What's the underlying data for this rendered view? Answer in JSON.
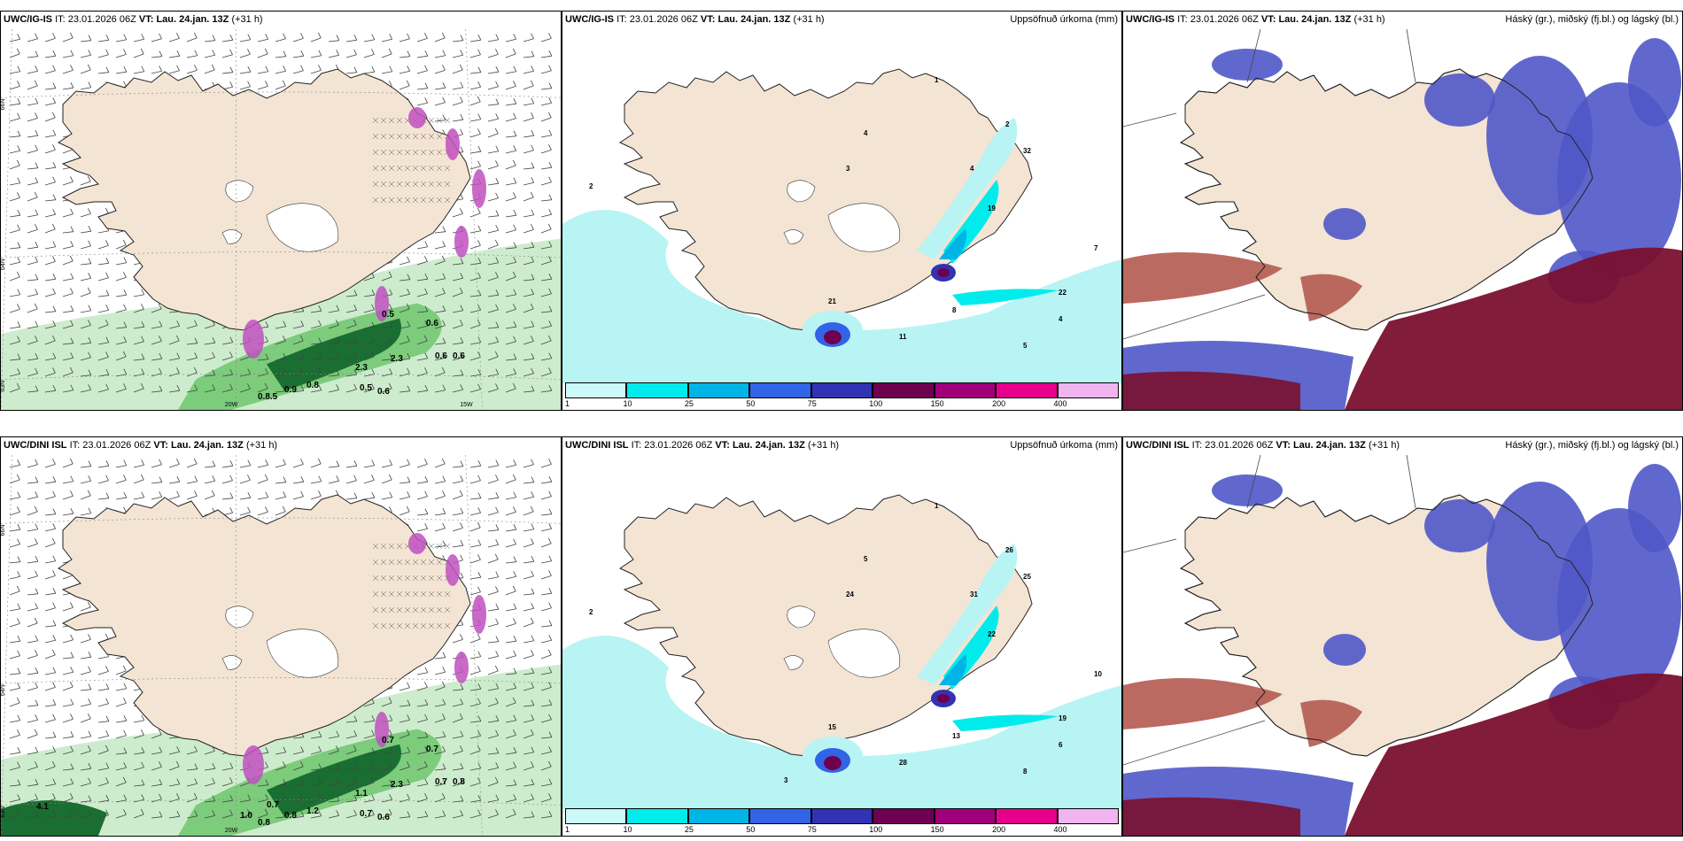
{
  "panels": [
    {
      "id": "r1c1",
      "model": "UWC/IG-IS",
      "it_label": "IT:",
      "it_value": "23.01.2026 06Z",
      "vt_label": "VT:",
      "vt_value": "Lau. 24.jan. 13Z",
      "lead": "(+31 h)",
      "right_title": "",
      "lat_labels": [
        "66N",
        "64N",
        "63N"
      ],
      "lon_labels": [
        "20W",
        "15W"
      ],
      "value_labels": [
        "0.5",
        "0.6",
        "0.6",
        "0.6",
        "2.3",
        "2.3",
        "0.9",
        "0.8",
        "0.5",
        "0.6",
        "0.8.5"
      ]
    },
    {
      "id": "r1c2",
      "model": "UWC/IG-IS",
      "it_label": "IT:",
      "it_value": "23.01.2026 06Z",
      "vt_label": "VT:",
      "vt_value": "Lau. 24.jan. 13Z",
      "lead": "(+31 h)",
      "right_title": "Uppsöfnuð úrkoma (mm)",
      "value_labels": [
        "2",
        "1",
        "4",
        "3",
        "4",
        "2",
        "22",
        "21",
        "19",
        "32",
        "8",
        "7",
        "11",
        "5",
        "4"
      ]
    },
    {
      "id": "r1c3",
      "model": "UWC/IG-IS",
      "it_label": "IT:",
      "it_value": "23.01.2026 06Z",
      "vt_label": "VT:",
      "vt_value": "Lau. 24.jan. 13Z",
      "lead": "(+31 h)",
      "right_title": "Háský (gr.), miðský (fj.bl.) og lágský (bl.)"
    },
    {
      "id": "r2c1",
      "model": "UWC/DINI ISL",
      "it_label": "IT:",
      "it_value": "23.01.2026 06Z",
      "vt_label": "VT:",
      "vt_value": "Lau. 24.jan. 13Z",
      "lead": "(+31 h)",
      "right_title": "",
      "lat_labels": [
        "66N",
        "64N",
        "63N"
      ],
      "lon_labels": [
        "20W"
      ],
      "value_labels": [
        "0.7",
        "0.7",
        "0.8",
        "0.7",
        "1.1",
        "2.3",
        "0.8",
        "1.2",
        "0.7",
        "0.6",
        "0.8",
        "4.1",
        "0.7",
        "1.0"
      ]
    },
    {
      "id": "r2c2",
      "model": "UWC/DINI ISL",
      "it_label": "IT:",
      "it_value": "23.01.2026 06Z",
      "vt_label": "VT:",
      "vt_value": "Lau. 24.jan. 13Z",
      "lead": "(+31 h)",
      "right_title": "Uppsöfnuð úrkoma (mm)",
      "value_labels": [
        "2",
        "1",
        "5",
        "24",
        "31",
        "26",
        "19",
        "15",
        "22",
        "25",
        "13",
        "10",
        "28",
        "8",
        "6",
        "3"
      ]
    },
    {
      "id": "r2c3",
      "model": "UWC/DINI ISL",
      "it_label": "IT:",
      "it_value": "23.01.2026 06Z",
      "vt_label": "VT:",
      "vt_value": "Lau. 24.jan. 13Z",
      "lead": "(+31 h)",
      "right_title": "Háský (gr.), miðský (fj.bl.) og lágský (bl.)"
    }
  ],
  "colorbar": {
    "labels": [
      "1",
      "10",
      "25",
      "50",
      "75",
      "100",
      "150",
      "200",
      "400"
    ],
    "colors": [
      "#ccfafa",
      "#00ecec",
      "#00b4e6",
      "#3264e6",
      "#3232b4",
      "#6e0050",
      "#a0007a",
      "#e6008c",
      "#f0b4f0"
    ]
  },
  "colors": {
    "land": "#f3e4d4",
    "sea_precip": "#b8f4f4",
    "green_light": "#cdeccd",
    "green_mid": "#7ccc7c",
    "green_dark": "#1a6e32",
    "purple": "#c050c0",
    "cloud_blue": "#5058c8",
    "cloud_dark": "#7a1030",
    "cloud_brown": "#b45a50"
  }
}
